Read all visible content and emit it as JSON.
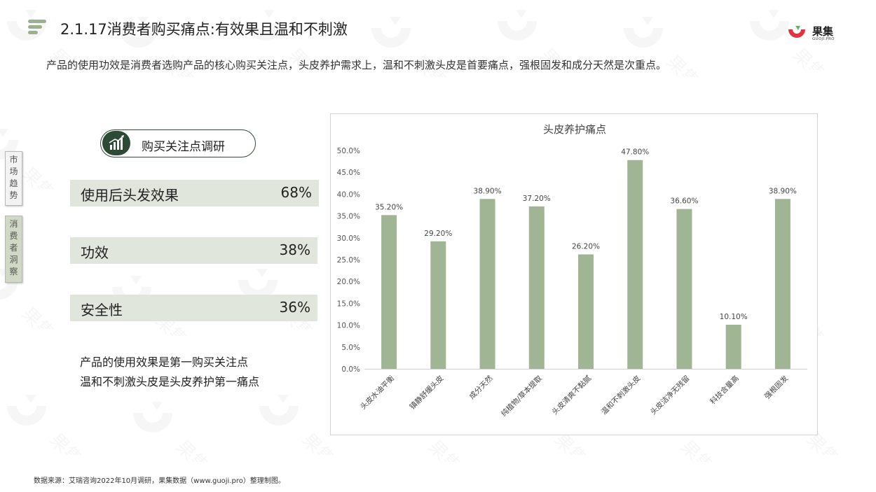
{
  "header": {
    "title": "2.1.17消费者购买痛点:有效果且温和不刺激",
    "brand_name": "果集",
    "brand_sub": "GUOJI.PRO"
  },
  "subtitle": "产品的使用功效是消费者选购产品的核心购买关注点，头皮养护需求上，温和不刺激头皮是首要痛点，强根固发和成分天然是次重点。",
  "side_tabs": [
    {
      "label": "市\n场\n趋\n势"
    },
    {
      "label": "消\n费\n者\n洞\n察"
    }
  ],
  "survey": {
    "label": "购买关注点调研",
    "icon": "bar-chart-icon",
    "rows": [
      {
        "label": "使用后头发效果",
        "value": "68%"
      },
      {
        "label": "功效",
        "value": "38%"
      },
      {
        "label": "安全性",
        "value": "36%"
      }
    ]
  },
  "summary": [
    "产品的使用效果是第一购买关注点",
    "温和不刺激头皮是头皮养护第一痛点"
  ],
  "source": "数据来源：艾瑞咨询2022年10月调研，果集数据（www.guoji.pro）整理制图。",
  "colors": {
    "accent": "#9bb08e",
    "bar": "#a0b594",
    "dark_green": "#2d4a35",
    "row_bg": "#e0e6dc",
    "brand_red": "#e2323f",
    "brand_green": "#5cb85c"
  },
  "chart_data": {
    "type": "bar",
    "title": "头皮养护痛点",
    "categories": [
      "头皮水油平衡",
      "镇静舒缓头皮",
      "成分天然",
      "纯植物/草本提取",
      "头皮清爽不黏腻",
      "温和不刺激头皮",
      "头皮洁净无残留",
      "科技含量高",
      "强根固发"
    ],
    "values": [
      35.2,
      29.2,
      38.9,
      37.2,
      26.2,
      47.8,
      36.6,
      10.1,
      38.9
    ],
    "value_labels": [
      "35.20%",
      "29.20%",
      "38.90%",
      "37.20%",
      "26.20%",
      "47.80%",
      "36.60%",
      "10.10%",
      "38.90%"
    ],
    "ylim": [
      0,
      50
    ],
    "yticks": [
      "0.0%",
      "5.0%",
      "10.0%",
      "15.0%",
      "20.0%",
      "25.0%",
      "30.0%",
      "35.0%",
      "40.0%",
      "45.0%",
      "50.0%"
    ],
    "xlabel": "",
    "ylabel": "",
    "grid": false,
    "legend": "none"
  }
}
